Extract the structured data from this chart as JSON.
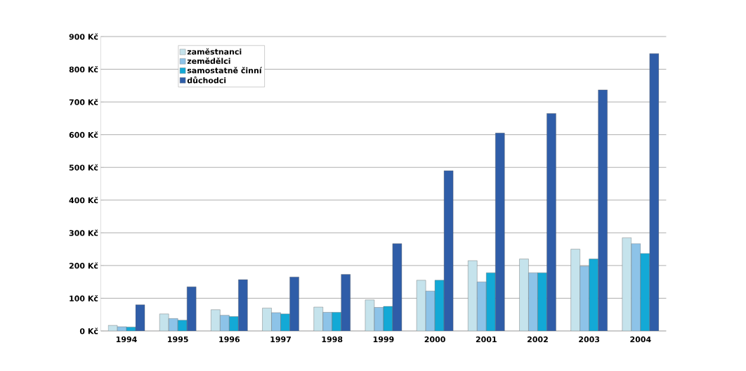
{
  "chart_data": {
    "type": "bar",
    "categories": [
      "1994",
      "1995",
      "1996",
      "1997",
      "1998",
      "1999",
      "2000",
      "2001",
      "2002",
      "2003",
      "2004"
    ],
    "series": [
      {
        "name": "zaměstnanci",
        "color": "#c5e3ec",
        "values": [
          17,
          52,
          65,
          70,
          73,
          95,
          155,
          215,
          220,
          250,
          285
        ]
      },
      {
        "name": "zemědělci",
        "color": "#8dc3e8",
        "values": [
          13,
          38,
          48,
          56,
          57,
          72,
          122,
          150,
          178,
          198,
          267
        ]
      },
      {
        "name": "samostatně činní",
        "color": "#13a9d6",
        "values": [
          12,
          33,
          44,
          52,
          57,
          75,
          155,
          178,
          178,
          220,
          237
        ]
      },
      {
        "name": "důchodci",
        "color": "#2f5da8",
        "values": [
          80,
          135,
          157,
          165,
          173,
          267,
          490,
          605,
          665,
          737,
          848
        ]
      }
    ],
    "ylim": [
      0,
      900
    ],
    "yticks": [
      {
        "value": 0,
        "label": "0 Kč"
      },
      {
        "value": 100,
        "label": "100 Kč"
      },
      {
        "value": 200,
        "label": "200 Kč"
      },
      {
        "value": 300,
        "label": "300 Kč"
      },
      {
        "value": 400,
        "label": "400 Kč"
      },
      {
        "value": 500,
        "label": "500 Kč"
      },
      {
        "value": 600,
        "label": "600 Kč"
      },
      {
        "value": 700,
        "label": "700 Kč"
      },
      {
        "value": 800,
        "label": "800 Kč"
      },
      {
        "value": 900,
        "label": "900 Kč"
      }
    ],
    "grid": "y",
    "legend": "top left"
  }
}
